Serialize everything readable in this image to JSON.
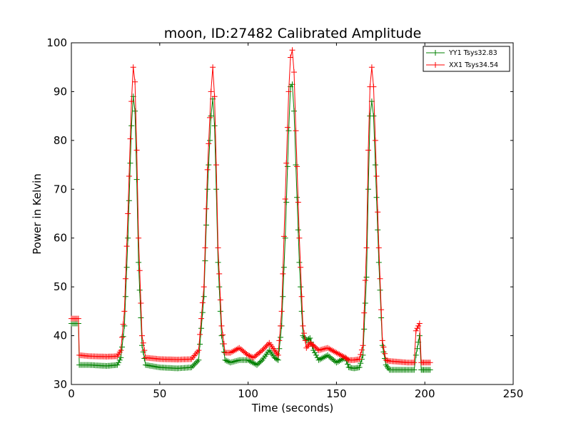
{
  "chart_data": {
    "type": "line",
    "title": "moon, ID:27482 Calibrated Amplitude",
    "xlabel": "Time (seconds)",
    "ylabel": "Power in Kelvin",
    "xlim": [
      0,
      250
    ],
    "ylim": [
      30,
      100
    ],
    "x_ticks": [
      "0",
      "50",
      "100",
      "150",
      "200",
      "250"
    ],
    "y_ticks": [
      "30",
      "40",
      "50",
      "60",
      "70",
      "80",
      "90",
      "100"
    ],
    "grid": false,
    "legend_position": "top-right",
    "marker": "+",
    "series": [
      {
        "name": "YY1 Tsys32.83",
        "color": "#008000",
        "points": [
          [
            0,
            42.5
          ],
          [
            4,
            42.5
          ],
          [
            4.5,
            34.0
          ],
          [
            10,
            34.0
          ],
          [
            20,
            33.8
          ],
          [
            26,
            34.0
          ],
          [
            28,
            35.5
          ],
          [
            30,
            42
          ],
          [
            32,
            60
          ],
          [
            34,
            83
          ],
          [
            35,
            89
          ],
          [
            36,
            86
          ],
          [
            37,
            72
          ],
          [
            38,
            55
          ],
          [
            40,
            38
          ],
          [
            42,
            34
          ],
          [
            50,
            33.5
          ],
          [
            60,
            33.3
          ],
          [
            68,
            33.5
          ],
          [
            72,
            35
          ],
          [
            75,
            48
          ],
          [
            77,
            70
          ],
          [
            79,
            85
          ],
          [
            80,
            88.5
          ],
          [
            81,
            83
          ],
          [
            82,
            70
          ],
          [
            83,
            55
          ],
          [
            85,
            40
          ],
          [
            87,
            35
          ],
          [
            90,
            34.5
          ],
          [
            95,
            35
          ],
          [
            100,
            35
          ],
          [
            105,
            34
          ],
          [
            108,
            35
          ],
          [
            112,
            37
          ],
          [
            115,
            35.5
          ],
          [
            117,
            35
          ],
          [
            119,
            42
          ],
          [
            121,
            60
          ],
          [
            123,
            82
          ],
          [
            124,
            91
          ],
          [
            125,
            91.5
          ],
          [
            126,
            86
          ],
          [
            127,
            75
          ],
          [
            129,
            55
          ],
          [
            131,
            40
          ],
          [
            133,
            39
          ],
          [
            135,
            39.5
          ],
          [
            137,
            37
          ],
          [
            140,
            35
          ],
          [
            145,
            36
          ],
          [
            150,
            34.5
          ],
          [
            155,
            35.5
          ],
          [
            157,
            33.5
          ],
          [
            160,
            33.3
          ],
          [
            163,
            33.5
          ],
          [
            165,
            36
          ],
          [
            167,
            52
          ],
          [
            168,
            70
          ],
          [
            169,
            85
          ],
          [
            170,
            88
          ],
          [
            171,
            85
          ],
          [
            172,
            75
          ],
          [
            174,
            55
          ],
          [
            176,
            38
          ],
          [
            178,
            34
          ],
          [
            180,
            33
          ],
          [
            190,
            33
          ],
          [
            194,
            33
          ],
          [
            195,
            36
          ],
          [
            197,
            40
          ],
          [
            198,
            33
          ],
          [
            200,
            33
          ],
          [
            203,
            33
          ]
        ]
      },
      {
        "name": "XX1 Tsys34.54",
        "color": "#ff0000",
        "points": [
          [
            0,
            43.5
          ],
          [
            4,
            43.5
          ],
          [
            4.5,
            36.0
          ],
          [
            10,
            35.8
          ],
          [
            20,
            35.7
          ],
          [
            26,
            35.8
          ],
          [
            28,
            37
          ],
          [
            30,
            45
          ],
          [
            32,
            65
          ],
          [
            34,
            88
          ],
          [
            35,
            95
          ],
          [
            36,
            92
          ],
          [
            37,
            78
          ],
          [
            38,
            60
          ],
          [
            40,
            40
          ],
          [
            42,
            35.5
          ],
          [
            50,
            35.2
          ],
          [
            60,
            35.1
          ],
          [
            68,
            35.2
          ],
          [
            72,
            37
          ],
          [
            75,
            50
          ],
          [
            77,
            74
          ],
          [
            79,
            90
          ],
          [
            80,
            95
          ],
          [
            81,
            89
          ],
          [
            82,
            75
          ],
          [
            83,
            58
          ],
          [
            85,
            42
          ],
          [
            87,
            36.5
          ],
          [
            90,
            36.5
          ],
          [
            95,
            37.5
          ],
          [
            100,
            36
          ],
          [
            103,
            35.5
          ],
          [
            108,
            37
          ],
          [
            112,
            38.5
          ],
          [
            115,
            37
          ],
          [
            117,
            36
          ],
          [
            119,
            45
          ],
          [
            121,
            68
          ],
          [
            123,
            90
          ],
          [
            124,
            97
          ],
          [
            125,
            98.5
          ],
          [
            126,
            94
          ],
          [
            127,
            82
          ],
          [
            129,
            60
          ],
          [
            131,
            42
          ],
          [
            133,
            37.5
          ],
          [
            135,
            38.5
          ],
          [
            137,
            38
          ],
          [
            140,
            37
          ],
          [
            145,
            37.5
          ],
          [
            150,
            36.5
          ],
          [
            155,
            35.5
          ],
          [
            157,
            35
          ],
          [
            160,
            35
          ],
          [
            163,
            35.2
          ],
          [
            165,
            38
          ],
          [
            167,
            58
          ],
          [
            168,
            78
          ],
          [
            169,
            91
          ],
          [
            170,
            95
          ],
          [
            171,
            91
          ],
          [
            172,
            80
          ],
          [
            174,
            58
          ],
          [
            176,
            39
          ],
          [
            178,
            35
          ],
          [
            180,
            34.8
          ],
          [
            190,
            34.5
          ],
          [
            194,
            34.5
          ],
          [
            195,
            41
          ],
          [
            197,
            42.5
          ],
          [
            198,
            34.5
          ],
          [
            200,
            34.5
          ],
          [
            203,
            34.5
          ]
        ]
      }
    ]
  }
}
